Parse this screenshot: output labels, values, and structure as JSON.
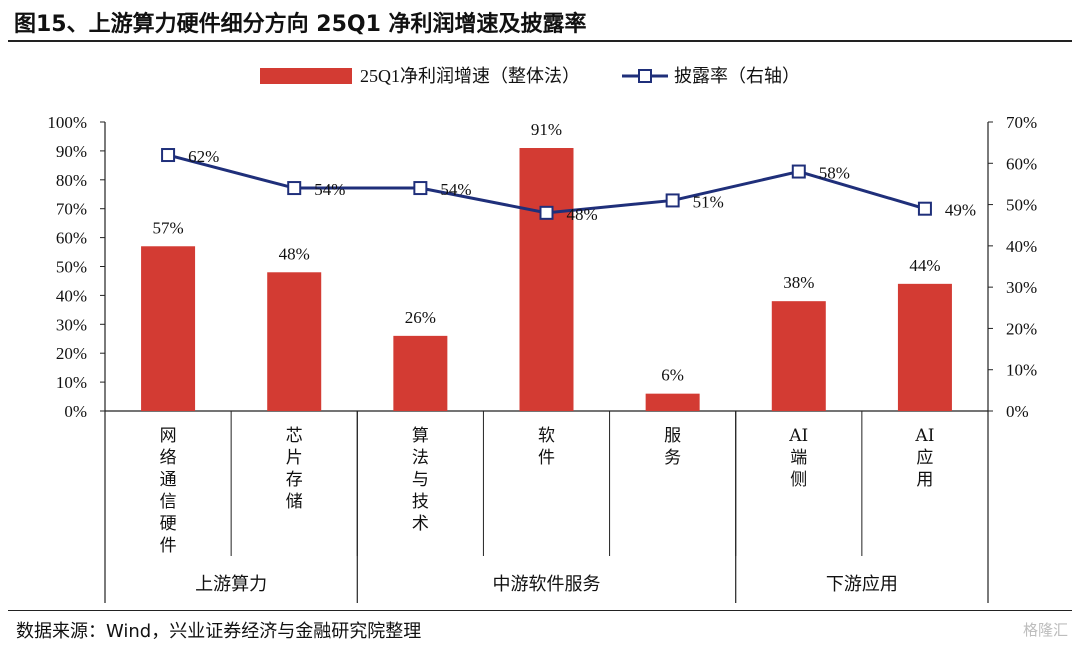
{
  "figure": {
    "title": "图15、上游算力硬件细分方向 25Q1 净利润增速及披露率",
    "source": "数据来源：Wind，兴业证券经济与金融研究院整理",
    "watermark": "格隆汇"
  },
  "chart_data": {
    "type": "bar",
    "title": "",
    "categories": [
      "网络通信硬件",
      "芯片存储",
      "算法与技术",
      "软件",
      "服务",
      "AI端侧",
      "AI应用"
    ],
    "category_lines": [
      [
        "网",
        "络",
        "通",
        "信",
        "硬",
        "件"
      ],
      [
        "芯",
        "片",
        "存",
        "储"
      ],
      [
        "算",
        "法",
        "与",
        "技",
        "术"
      ],
      [
        "软",
        "件"
      ],
      [
        "服",
        "务"
      ],
      [
        "AI",
        "端",
        "侧"
      ],
      [
        "AI",
        "应",
        "用"
      ]
    ],
    "groups": [
      {
        "name": "上游算力",
        "categories": [
          "网络通信硬件",
          "芯片存储"
        ]
      },
      {
        "name": "中游软件服务",
        "categories": [
          "算法与技术",
          "软件",
          "服务"
        ]
      },
      {
        "name": "下游应用",
        "categories": [
          "AI端侧",
          "AI应用"
        ]
      }
    ],
    "series": [
      {
        "name": "25Q1净利润增速（整体法）",
        "type": "bar",
        "axis": "left",
        "color": "#d33b33",
        "values": [
          57,
          48,
          26,
          91,
          6,
          38,
          44
        ],
        "labels": [
          "57%",
          "48%",
          "26%",
          "91%",
          "6%",
          "38%",
          "44%"
        ]
      },
      {
        "name": "披露率（右轴）",
        "type": "line",
        "axis": "right",
        "color": "#1f2f7a",
        "values": [
          62,
          54,
          54,
          48,
          51,
          58,
          49
        ],
        "labels": [
          "62%",
          "54%",
          "54%",
          "48%",
          "51%",
          "58%",
          "49%"
        ]
      }
    ],
    "y_left": {
      "min": 0,
      "max": 100,
      "step": 10,
      "ticks": [
        "0%",
        "10%",
        "20%",
        "30%",
        "40%",
        "50%",
        "60%",
        "70%",
        "80%",
        "90%",
        "100%"
      ]
    },
    "y_right": {
      "min": 0,
      "max": 70,
      "step": 10,
      "ticks": [
        "0%",
        "10%",
        "20%",
        "30%",
        "40%",
        "50%",
        "60%",
        "70%"
      ]
    },
    "grid": false,
    "legend_position": "top-center"
  }
}
